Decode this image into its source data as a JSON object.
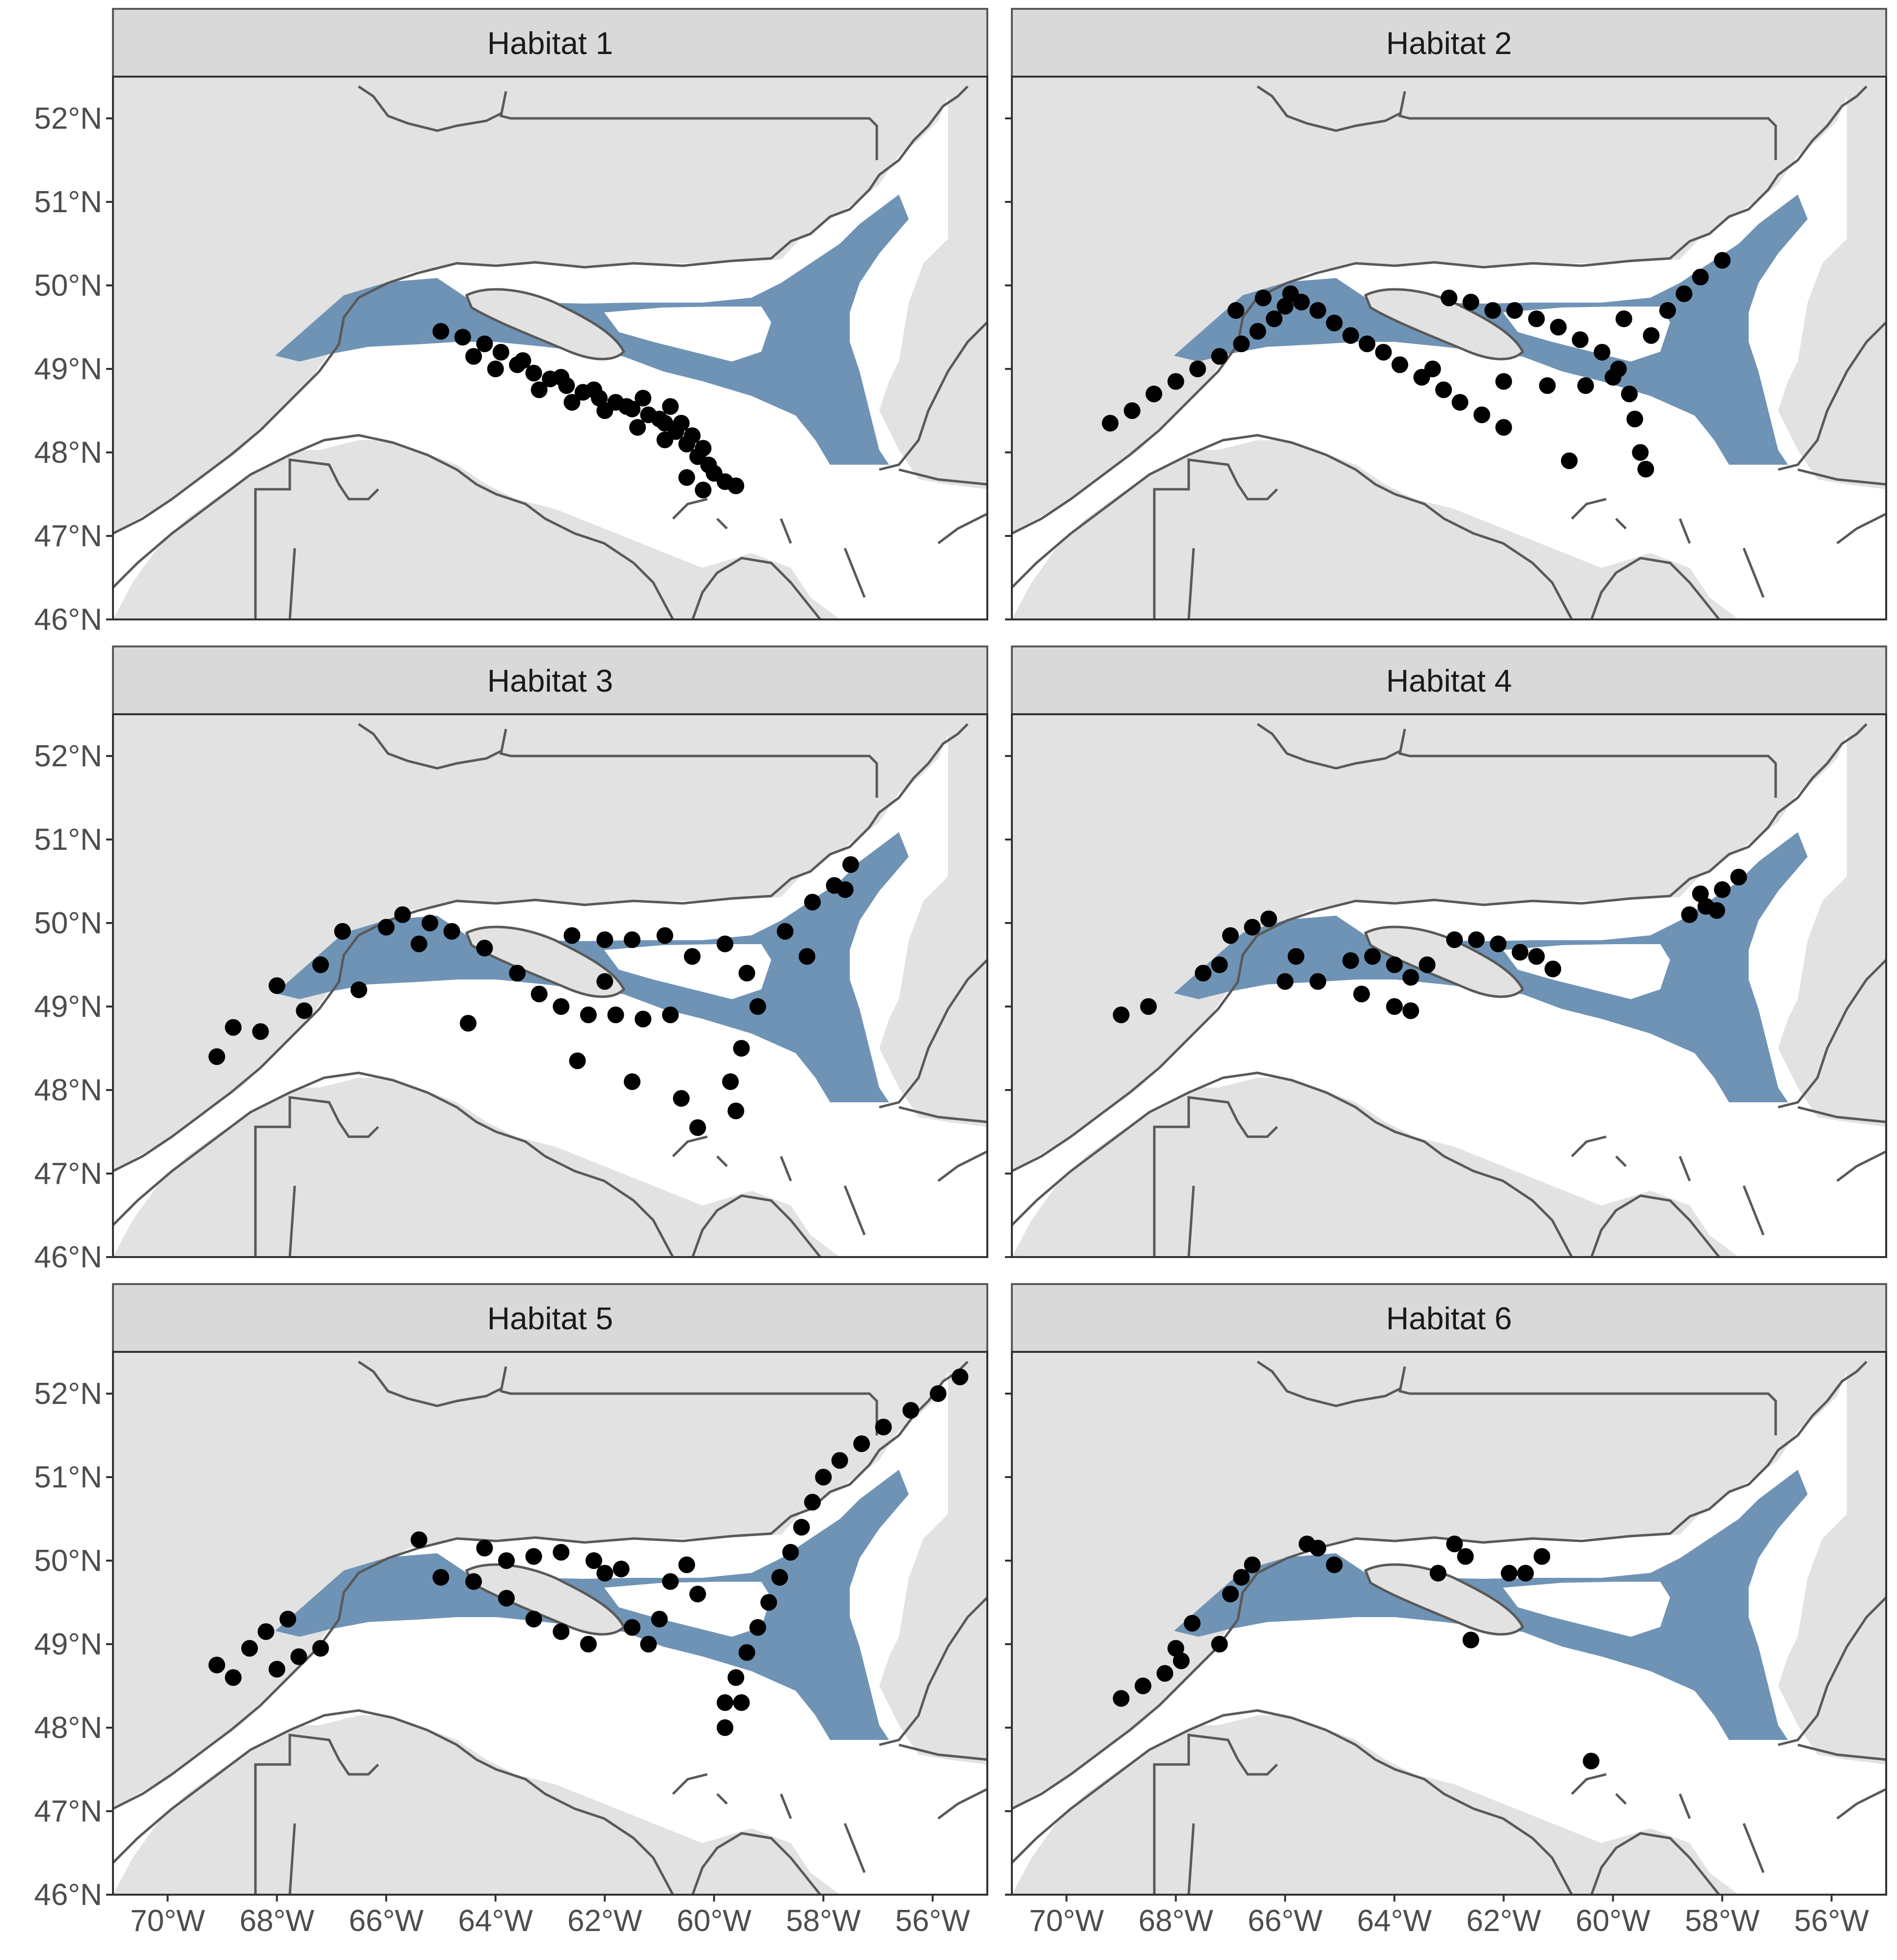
{
  "figure": {
    "panels": [
      {
        "title": "Habitat 1",
        "points": [
          [
            -65.0,
            49.45
          ],
          [
            -64.6,
            49.38
          ],
          [
            -64.2,
            49.3
          ],
          [
            -63.9,
            49.2
          ],
          [
            -63.6,
            49.05
          ],
          [
            -63.3,
            48.95
          ],
          [
            -63.0,
            48.88
          ],
          [
            -62.7,
            48.8
          ],
          [
            -62.4,
            48.72
          ],
          [
            -62.1,
            48.65
          ],
          [
            -61.8,
            48.6
          ],
          [
            -61.5,
            48.52
          ],
          [
            -61.2,
            48.45
          ],
          [
            -60.9,
            48.35
          ],
          [
            -60.7,
            48.25
          ],
          [
            -60.5,
            48.1
          ],
          [
            -60.3,
            47.95
          ],
          [
            -60.1,
            47.85
          ],
          [
            -60.0,
            47.75
          ],
          [
            -59.8,
            47.65
          ],
          [
            -59.6,
            47.6
          ],
          [
            -60.2,
            47.55
          ],
          [
            -63.5,
            49.1
          ],
          [
            -62.8,
            48.9
          ],
          [
            -62.2,
            48.75
          ],
          [
            -61.6,
            48.55
          ],
          [
            -61.0,
            48.4
          ],
          [
            -60.8,
            48.55
          ],
          [
            -60.6,
            48.35
          ],
          [
            -60.4,
            48.2
          ],
          [
            -60.2,
            48.05
          ],
          [
            -61.4,
            48.3
          ],
          [
            -62.0,
            48.5
          ],
          [
            -62.6,
            48.6
          ],
          [
            -63.2,
            48.75
          ],
          [
            -64.0,
            49.0
          ],
          [
            -64.4,
            49.15
          ],
          [
            -60.5,
            47.7
          ],
          [
            -60.9,
            48.15
          ],
          [
            -61.3,
            48.65
          ]
        ]
      },
      {
        "title": "Habitat 2",
        "points": [
          [
            -69.2,
            48.35
          ],
          [
            -68.8,
            48.5
          ],
          [
            -68.4,
            48.7
          ],
          [
            -68.0,
            48.85
          ],
          [
            -67.6,
            49.0
          ],
          [
            -67.2,
            49.15
          ],
          [
            -66.8,
            49.3
          ],
          [
            -66.5,
            49.45
          ],
          [
            -66.2,
            49.6
          ],
          [
            -66.0,
            49.75
          ],
          [
            -65.7,
            49.8
          ],
          [
            -65.4,
            49.7
          ],
          [
            -65.1,
            49.55
          ],
          [
            -64.8,
            49.4
          ],
          [
            -64.5,
            49.3
          ],
          [
            -64.2,
            49.2
          ],
          [
            -63.9,
            49.05
          ],
          [
            -63.5,
            48.9
          ],
          [
            -63.1,
            48.75
          ],
          [
            -62.8,
            48.6
          ],
          [
            -62.4,
            48.45
          ],
          [
            -62.0,
            48.3
          ],
          [
            -66.9,
            49.7
          ],
          [
            -66.4,
            49.85
          ],
          [
            -65.9,
            49.9
          ],
          [
            -63.0,
            49.85
          ],
          [
            -62.6,
            49.8
          ],
          [
            -62.2,
            49.7
          ],
          [
            -61.8,
            49.7
          ],
          [
            -61.4,
            49.6
          ],
          [
            -61.0,
            49.5
          ],
          [
            -60.6,
            49.35
          ],
          [
            -60.2,
            49.2
          ],
          [
            -59.9,
            49.0
          ],
          [
            -59.7,
            48.7
          ],
          [
            -59.6,
            48.4
          ],
          [
            -59.5,
            48.0
          ],
          [
            -59.4,
            47.8
          ],
          [
            -60.8,
            47.9
          ],
          [
            -59.3,
            49.4
          ],
          [
            -59.0,
            49.7
          ],
          [
            -58.7,
            49.9
          ],
          [
            -58.4,
            50.1
          ],
          [
            -58.0,
            50.3
          ],
          [
            -59.8,
            49.6
          ],
          [
            -60.0,
            48.9
          ],
          [
            -63.3,
            49.0
          ],
          [
            -62.0,
            48.85
          ],
          [
            -61.2,
            48.8
          ],
          [
            -60.5,
            48.8
          ]
        ]
      },
      {
        "title": "Habitat 3",
        "points": [
          [
            -69.1,
            48.4
          ],
          [
            -68.8,
            48.75
          ],
          [
            -68.3,
            48.7
          ],
          [
            -68.0,
            49.25
          ],
          [
            -67.5,
            48.95
          ],
          [
            -67.2,
            49.5
          ],
          [
            -66.8,
            49.9
          ],
          [
            -66.5,
            49.2
          ],
          [
            -65.7,
            50.1
          ],
          [
            -65.2,
            50.0
          ],
          [
            -64.8,
            49.9
          ],
          [
            -64.2,
            49.7
          ],
          [
            -63.6,
            49.4
          ],
          [
            -63.2,
            49.15
          ],
          [
            -62.8,
            49.0
          ],
          [
            -62.3,
            48.9
          ],
          [
            -61.8,
            48.9
          ],
          [
            -61.3,
            48.85
          ],
          [
            -60.8,
            48.9
          ],
          [
            -62.6,
            49.85
          ],
          [
            -62.0,
            49.8
          ],
          [
            -61.5,
            49.8
          ],
          [
            -60.9,
            49.85
          ],
          [
            -60.4,
            49.6
          ],
          [
            -59.8,
            49.75
          ],
          [
            -59.4,
            49.4
          ],
          [
            -59.2,
            49.0
          ],
          [
            -59.5,
            48.5
          ],
          [
            -59.7,
            48.1
          ],
          [
            -59.6,
            47.75
          ],
          [
            -60.6,
            47.9
          ],
          [
            -60.3,
            47.55
          ],
          [
            -61.5,
            48.1
          ],
          [
            -62.5,
            48.35
          ],
          [
            -58.7,
            49.9
          ],
          [
            -58.2,
            50.25
          ],
          [
            -57.8,
            50.45
          ],
          [
            -57.5,
            50.7
          ],
          [
            -57.6,
            50.4
          ],
          [
            -58.3,
            49.6
          ],
          [
            -64.5,
            48.8
          ],
          [
            -65.4,
            49.75
          ],
          [
            -66.0,
            49.95
          ],
          [
            -62.0,
            49.3
          ]
        ]
      },
      {
        "title": "Habitat 4",
        "points": [
          [
            -69.0,
            48.9
          ],
          [
            -68.5,
            49.0
          ],
          [
            -67.5,
            49.4
          ],
          [
            -67.2,
            49.5
          ],
          [
            -67.0,
            49.85
          ],
          [
            -66.6,
            49.95
          ],
          [
            -66.3,
            50.05
          ],
          [
            -66.0,
            49.3
          ],
          [
            -65.4,
            49.3
          ],
          [
            -64.8,
            49.55
          ],
          [
            -64.4,
            49.6
          ],
          [
            -64.0,
            49.5
          ],
          [
            -63.7,
            49.35
          ],
          [
            -64.0,
            49.0
          ],
          [
            -63.7,
            48.95
          ],
          [
            -64.6,
            49.15
          ],
          [
            -62.9,
            49.8
          ],
          [
            -62.5,
            49.8
          ],
          [
            -62.1,
            49.75
          ],
          [
            -61.7,
            49.65
          ],
          [
            -61.4,
            49.6
          ],
          [
            -61.1,
            49.45
          ],
          [
            -58.6,
            50.1
          ],
          [
            -58.3,
            50.2
          ],
          [
            -58.0,
            50.4
          ],
          [
            -57.7,
            50.55
          ],
          [
            -58.4,
            50.35
          ],
          [
            -58.1,
            50.15
          ],
          [
            -65.8,
            49.6
          ],
          [
            -63.4,
            49.5
          ]
        ]
      },
      {
        "title": "Habitat 5",
        "points": [
          [
            -69.1,
            48.75
          ],
          [
            -68.8,
            48.6
          ],
          [
            -68.5,
            48.95
          ],
          [
            -68.2,
            49.15
          ],
          [
            -67.8,
            49.3
          ],
          [
            -67.6,
            48.85
          ],
          [
            -67.2,
            48.95
          ],
          [
            -68.0,
            48.7
          ],
          [
            -65.4,
            50.25
          ],
          [
            -65.0,
            49.8
          ],
          [
            -64.4,
            49.75
          ],
          [
            -64.2,
            50.15
          ],
          [
            -63.8,
            50.0
          ],
          [
            -63.3,
            50.05
          ],
          [
            -62.8,
            50.1
          ],
          [
            -62.2,
            50.0
          ],
          [
            -61.7,
            49.9
          ],
          [
            -63.8,
            49.55
          ],
          [
            -63.3,
            49.3
          ],
          [
            -62.8,
            49.15
          ],
          [
            -62.3,
            49.0
          ],
          [
            -61.2,
            49.0
          ],
          [
            -61.0,
            49.3
          ],
          [
            -60.8,
            49.75
          ],
          [
            -60.5,
            49.95
          ],
          [
            -59.8,
            48.3
          ],
          [
            -59.6,
            48.6
          ],
          [
            -59.4,
            48.9
          ],
          [
            -59.2,
            49.2
          ],
          [
            -59.0,
            49.5
          ],
          [
            -58.8,
            49.8
          ],
          [
            -58.6,
            50.1
          ],
          [
            -58.4,
            50.4
          ],
          [
            -58.2,
            50.7
          ],
          [
            -58.0,
            51.0
          ],
          [
            -57.7,
            51.2
          ],
          [
            -57.3,
            51.4
          ],
          [
            -56.9,
            51.6
          ],
          [
            -56.4,
            51.8
          ],
          [
            -55.9,
            52.0
          ],
          [
            -55.5,
            52.2
          ],
          [
            -59.8,
            48.0
          ],
          [
            -59.5,
            48.3
          ],
          [
            -60.3,
            49.6
          ],
          [
            -62.0,
            49.85
          ],
          [
            -61.5,
            49.2
          ]
        ]
      },
      {
        "title": "Habitat 6",
        "points": [
          [
            -69.0,
            48.35
          ],
          [
            -68.6,
            48.5
          ],
          [
            -68.2,
            48.65
          ],
          [
            -68.0,
            48.95
          ],
          [
            -67.7,
            49.25
          ],
          [
            -67.2,
            49.0
          ],
          [
            -67.0,
            49.6
          ],
          [
            -66.8,
            49.8
          ],
          [
            -66.6,
            49.95
          ],
          [
            -65.6,
            50.2
          ],
          [
            -65.4,
            50.15
          ],
          [
            -65.1,
            49.95
          ],
          [
            -63.2,
            49.85
          ],
          [
            -62.9,
            50.2
          ],
          [
            -62.7,
            50.05
          ],
          [
            -61.9,
            49.85
          ],
          [
            -61.6,
            49.85
          ],
          [
            -61.3,
            50.05
          ],
          [
            -62.6,
            49.05
          ],
          [
            -60.4,
            47.6
          ],
          [
            -67.9,
            48.8
          ]
        ]
      }
    ],
    "axes": {
      "x_ticks": [
        "70°W",
        "68°W",
        "66°W",
        "64°W",
        "62°W",
        "60°W",
        "58°W",
        "56°W"
      ],
      "x_values": [
        -70,
        -68,
        -66,
        -64,
        -62,
        -60,
        -58,
        -56
      ],
      "y_ticks": [
        "52°N",
        "51°N",
        "50°N",
        "49°N",
        "48°N",
        "47°N",
        "46°N"
      ],
      "y_values": [
        52,
        51,
        50,
        49,
        48,
        47,
        46
      ],
      "xlim": [
        -71,
        -55
      ],
      "ylim": [
        46,
        52.5
      ]
    },
    "colors": {
      "land": "#e2e2e2",
      "sea": "#ffffff",
      "habitat_zone": "#6f93b5",
      "coastline": "#595959",
      "points": "#000000",
      "strip": "#d9d9d9"
    }
  }
}
